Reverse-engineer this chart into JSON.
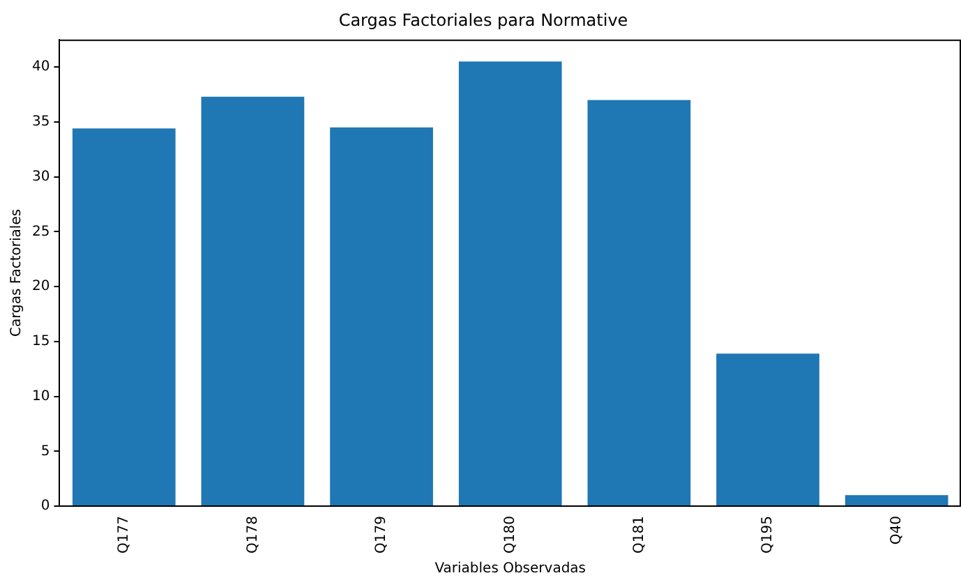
{
  "chart_data": {
    "type": "bar",
    "title": "Cargas Factoriales para Normative",
    "xlabel": "Variables Observadas",
    "ylabel": "Cargas Factoriales",
    "categories": [
      "Q177",
      "Q178",
      "Q179",
      "Q180",
      "Q181",
      "Q195",
      "Q40"
    ],
    "values": [
      34.4,
      37.3,
      34.5,
      40.5,
      37.0,
      13.9,
      1.0
    ],
    "color": "#1f77b4",
    "ylim": [
      0,
      42.5
    ],
    "yticks": [
      0,
      5,
      10,
      15,
      20,
      25,
      30,
      35,
      40
    ],
    "grid": false
  }
}
